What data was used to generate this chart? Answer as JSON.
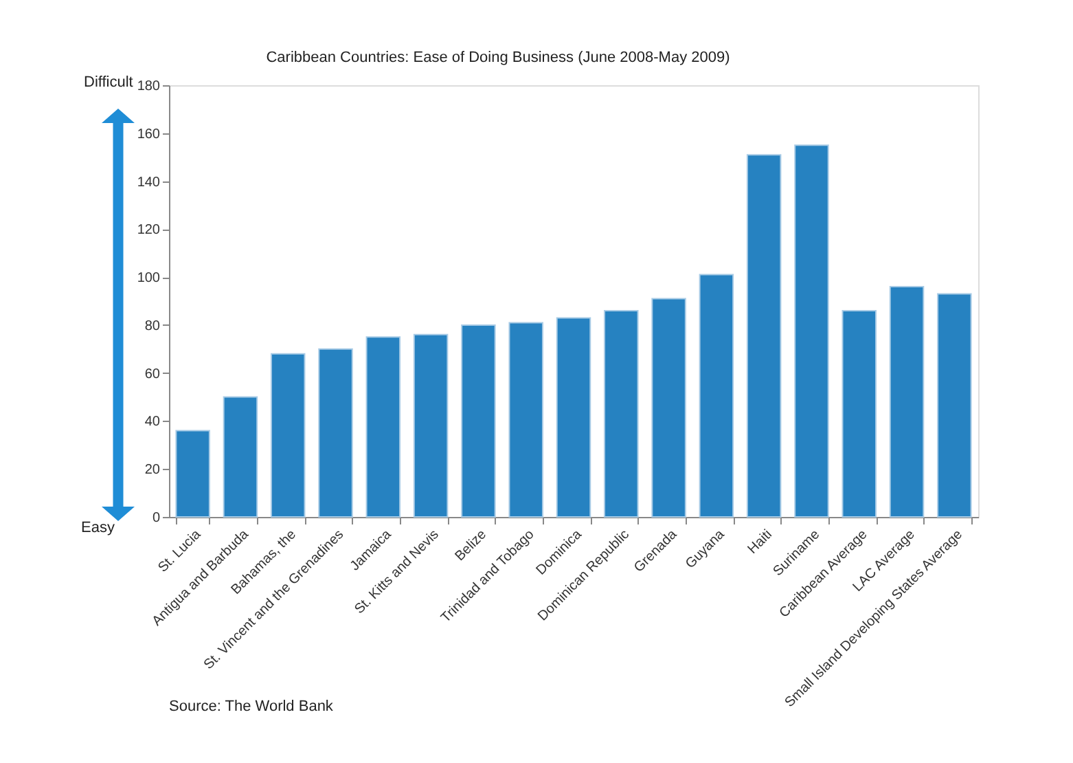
{
  "chart_data": {
    "type": "bar",
    "title": "Caribbean Countries: Ease of Doing Business (June 2008-May 2009)",
    "categories": [
      "St. Lucia",
      "Antigua and Barbuda",
      "Bahamas, the",
      "St. Vincent and the Grenadines",
      "Jamaica",
      "St. Kitts and Nevis",
      "Belize",
      "Trinidad and Tobago",
      "Dominica",
      "Dominican Republic",
      "Grenada",
      "Guyana",
      "Haiti",
      "Suriname",
      "Caribbean Average",
      "LAC Average",
      "Small Island Developing States  Average"
    ],
    "values": [
      36,
      50,
      68,
      70,
      75,
      76,
      80,
      81,
      83,
      86,
      91,
      101,
      151,
      155,
      86,
      96,
      93
    ],
    "color": "#2682c1",
    "ylim": [
      0,
      180
    ],
    "yticks": [
      0,
      20,
      40,
      60,
      80,
      100,
      120,
      140,
      160,
      180
    ],
    "grid": false,
    "annotations": [
      "Difficult",
      "Easy",
      "Source: The World Bank"
    ]
  }
}
